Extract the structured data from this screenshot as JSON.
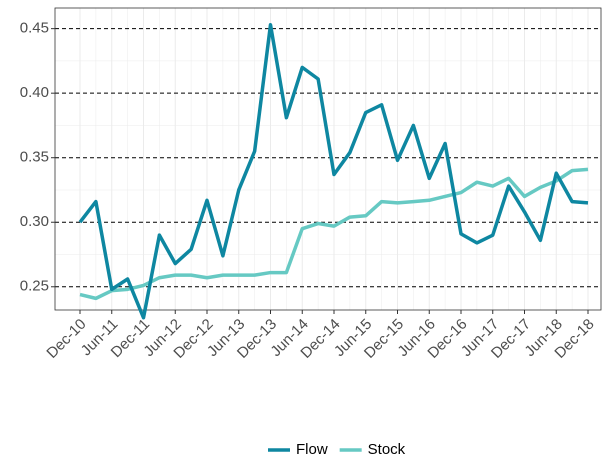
{
  "chart_data": {
    "type": "line",
    "x": [
      "Dec-10",
      null,
      "Jun-11",
      null,
      "Dec-11",
      null,
      "Jun-12",
      null,
      "Dec-12",
      null,
      "Jun-13",
      null,
      "Dec-13",
      null,
      "Jun-14",
      null,
      "Dec-14",
      null,
      "Jun-15",
      null,
      "Dec-15",
      null,
      "Jun-16",
      null,
      "Dec-16",
      null,
      "Jun-17",
      null,
      "Dec-17",
      null,
      "Jun-18",
      null,
      "Dec-18"
    ],
    "series": [
      {
        "name": "Flow",
        "color": "#0e87a1",
        "values": [
          0.3,
          0.316,
          0.248,
          0.256,
          0.226,
          0.29,
          0.268,
          0.279,
          0.317,
          0.274,
          0.325,
          0.355,
          0.453,
          0.381,
          0.42,
          0.411,
          0.337,
          0.354,
          0.385,
          0.391,
          0.348,
          0.375,
          0.334,
          0.361,
          0.291,
          0.284,
          0.29,
          0.328,
          0.308,
          0.286,
          0.338,
          0.316,
          0.315
        ]
      },
      {
        "name": "Stock",
        "color": "#66c9c3",
        "values": [
          0.244,
          0.241,
          0.247,
          0.248,
          0.251,
          0.257,
          0.259,
          0.259,
          0.257,
          0.259,
          0.259,
          0.259,
          0.261,
          0.261,
          0.295,
          0.299,
          0.297,
          0.304,
          0.305,
          0.316,
          0.315,
          0.316,
          0.317,
          0.32,
          0.323,
          0.331,
          0.328,
          0.334,
          0.32,
          0.327,
          0.332,
          0.34,
          0.341
        ]
      }
    ],
    "ylim": [
      0.232,
      0.466
    ],
    "yticks": [
      0.25,
      {
        "value": 0.3,
        "label": "0.30"
      },
      0.35,
      {
        "value": 0.4,
        "label": "0.40"
      },
      0.45
    ],
    "grid": true,
    "legend": "bottom"
  }
}
